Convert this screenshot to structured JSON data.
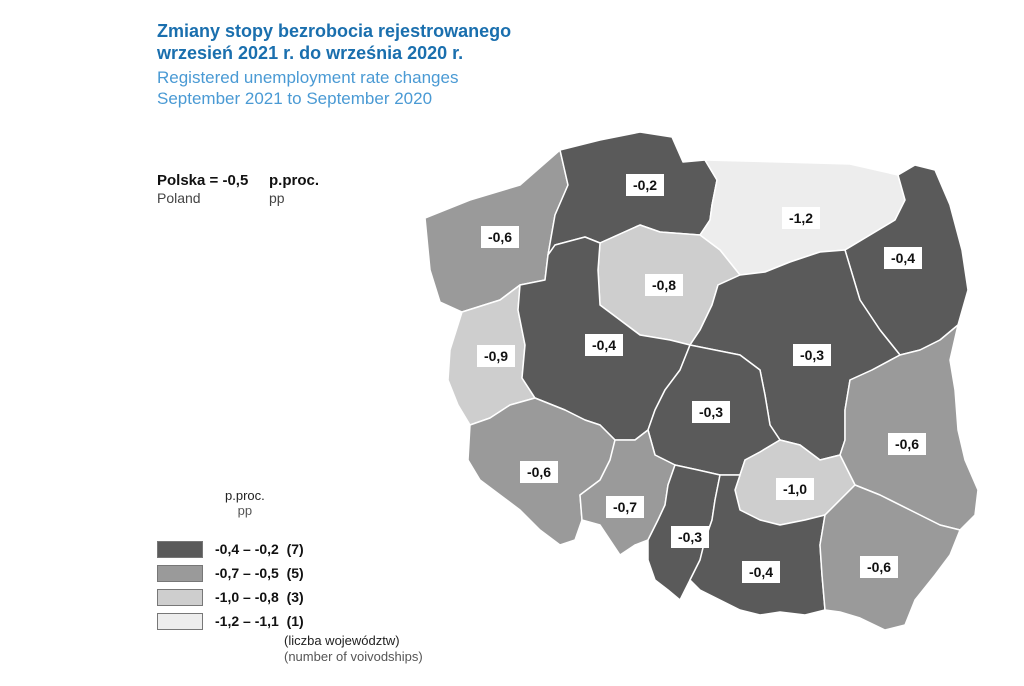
{
  "title": {
    "pl_line1": "Zmiany stopy bezrobocia rejestrowanego",
    "pl_line2": "wrzesień 2021 r. do września 2020 r.",
    "en_line1": "Registered unemployment rate changes",
    "en_line2": "September 2021 to September 2020"
  },
  "country_total": {
    "pl_label": "Polska = -0,5",
    "pl_unit": "p.proc.",
    "en_label": "Poland",
    "en_unit": "pp"
  },
  "legend": {
    "unit_pl": "p.proc.",
    "unit_en": "pp",
    "classes": [
      {
        "range": "-0,4 – -0,2",
        "count": "(7)",
        "color": "#5a5a5a"
      },
      {
        "range": "-0,7 – -0,5",
        "count": "(5)",
        "color": "#9a9a9a"
      },
      {
        "range": "-1,0 – -0,8",
        "count": "(3)",
        "color": "#cecece"
      },
      {
        "range": "-1,2 – -1,1",
        "count": "(1)",
        "color": "#ededed"
      }
    ],
    "note_pl": "(liczba województw)",
    "note_en": "(number of voivodships)"
  },
  "regions": [
    {
      "id": "zachodniopomorskie",
      "value": "-0,6",
      "class": 1
    },
    {
      "id": "pomorskie",
      "value": "-0,2",
      "class": 0
    },
    {
      "id": "warminsko-mazurskie",
      "value": "-1,2",
      "class": 3
    },
    {
      "id": "podlaskie",
      "value": "-0,4",
      "class": 0
    },
    {
      "id": "kujawsko-pomorskie",
      "value": "-0,8",
      "class": 2
    },
    {
      "id": "lubuskie",
      "value": "-0,9",
      "class": 2
    },
    {
      "id": "wielkopolskie",
      "value": "-0,4",
      "class": 0
    },
    {
      "id": "mazowieckie",
      "value": "-0,3",
      "class": 0
    },
    {
      "id": "lodzkie",
      "value": "-0,3",
      "class": 0
    },
    {
      "id": "lubelskie",
      "value": "-0,6",
      "class": 1
    },
    {
      "id": "dolnoslaskie",
      "value": "-0,6",
      "class": 1
    },
    {
      "id": "opolskie",
      "value": "-0,7",
      "class": 1
    },
    {
      "id": "swietokrzyskie",
      "value": "-1,0",
      "class": 2
    },
    {
      "id": "slaskie",
      "value": "-0,3",
      "class": 0
    },
    {
      "id": "malopolskie",
      "value": "-0,4",
      "class": 0
    },
    {
      "id": "podkarpackie",
      "value": "-0,6",
      "class": 1
    }
  ]
}
